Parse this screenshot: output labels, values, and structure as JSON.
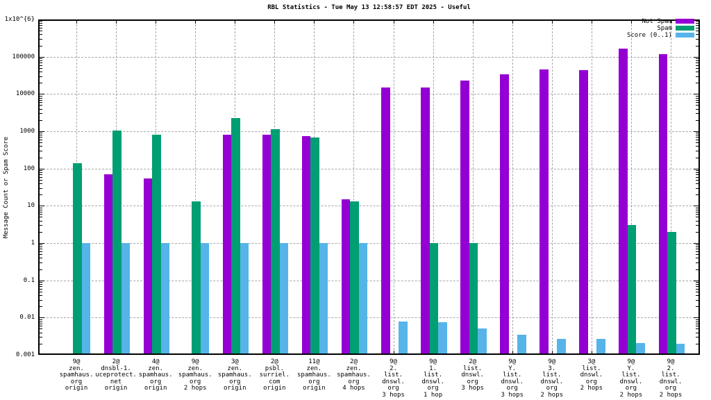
{
  "title": "RBL Statistics - Tue May 13 12:58:57 EDT 2025 - Useful",
  "y_axis_label": "Message Count or Spam Score",
  "legend": [
    {
      "label": "Not Spam",
      "color": "#9400d3"
    },
    {
      "label": "Spam",
      "color": "#009e73"
    },
    {
      "label": "Score (0..1)",
      "color": "#56b4e9"
    }
  ],
  "colors": {
    "not_spam": "#9400d3",
    "spam": "#009e73",
    "score": "#56b4e9",
    "grid": "#a6a6a6"
  },
  "chart_data": {
    "type": "bar",
    "y_scale": "log",
    "ylim": [
      0.001,
      1000000
    ],
    "y_ticks": [
      "0.001",
      "0.01",
      "0.1",
      "1",
      "10",
      "100",
      "1000",
      "10000",
      "100000",
      "1x10^{6}"
    ],
    "grid": true,
    "legend_position": "top-right",
    "title": "RBL Statistics - Tue May 13 12:58:57 EDT 2025 - Useful",
    "ylabel": "Message Count or Spam Score",
    "categories": [
      [
        "9@",
        "zen.",
        "spamhaus.",
        "org",
        "origin"
      ],
      [
        "2@",
        "dnsbl-1.",
        "uceprotect.",
        "net",
        "origin"
      ],
      [
        "4@",
        "zen.",
        "spamhaus.",
        "org",
        "origin"
      ],
      [
        "9@",
        "zen.",
        "spamhaus.",
        "org",
        "2 hops"
      ],
      [
        "3@",
        "zen.",
        "spamhaus.",
        "org",
        "origin"
      ],
      [
        "2@",
        "psbl.",
        "surriel.",
        "com",
        "origin"
      ],
      [
        "11@",
        "zen.",
        "spamhaus.",
        "org",
        "origin"
      ],
      [
        "2@",
        "zen.",
        "spamhaus.",
        "org",
        "4 hops"
      ],
      [
        "9@",
        "2.",
        "list.",
        "dnswl.",
        "org",
        "3 hops"
      ],
      [
        "9@",
        "1.",
        "list.",
        "dnswl.",
        "org",
        "1 hop"
      ],
      [
        "2@",
        "list.",
        "dnswl.",
        "org",
        "3 hops"
      ],
      [
        "9@",
        "Y.",
        "list.",
        "dnswl.",
        "org",
        "3 hops"
      ],
      [
        "9@",
        "3.",
        "list.",
        "dnswl.",
        "org",
        "2 hops"
      ],
      [
        "3@",
        "list.",
        "dnswl.",
        "org",
        "2 hops"
      ],
      [
        "9@",
        "Y.",
        "list.",
        "dnswl.",
        "org",
        "2 hops"
      ],
      [
        "9@",
        "2.",
        "list.",
        "dnswl.",
        "org",
        "2 hops"
      ]
    ],
    "series": [
      {
        "name": "Not Spam",
        "color": "#9400d3",
        "values": [
          null,
          70,
          55,
          null,
          820,
          800,
          750,
          15,
          15000,
          15000,
          23000,
          34000,
          45000,
          44000,
          165000,
          115000
        ]
      },
      {
        "name": "Spam",
        "color": "#009e73",
        "values": [
          140,
          1050,
          800,
          13,
          2300,
          1150,
          680,
          13,
          null,
          1,
          1,
          null,
          null,
          null,
          3,
          2
        ]
      },
      {
        "name": "Score (0..1)",
        "color": "#56b4e9",
        "values": [
          1,
          1,
          1,
          1,
          1,
          1,
          1,
          1,
          0.008,
          0.0075,
          0.005,
          0.0035,
          0.0027,
          0.0027,
          0.0021,
          0.002
        ]
      }
    ]
  }
}
